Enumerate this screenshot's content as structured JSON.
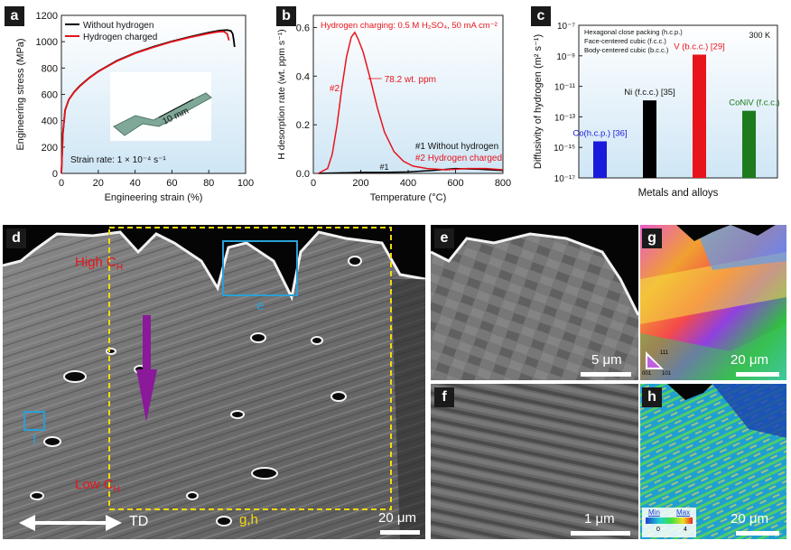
{
  "panels": {
    "a": "a",
    "b": "b",
    "c": "c",
    "d": "d",
    "e": "e",
    "f": "f",
    "g": "g",
    "h": "h"
  },
  "chart_data": [
    {
      "type": "line",
      "panel": "a",
      "xlabel": "Engineering strain (%)",
      "ylabel": "Engineering stress (MPa)",
      "xlim": [
        0,
        100
      ],
      "ylim": [
        0,
        1200
      ],
      "xticks": [
        0,
        20,
        40,
        60,
        80,
        100
      ],
      "yticks": [
        0,
        200,
        400,
        600,
        800,
        1000,
        1200
      ],
      "legend": [
        "Without hydrogen",
        "Hydrogen charged"
      ],
      "annotation": "Strain rate: 1 × 10⁻⁴ s⁻¹",
      "inset_label": "10 mm",
      "series": [
        {
          "name": "Without hydrogen",
          "color": "#000000",
          "x": [
            0,
            0.8,
            2,
            4,
            7,
            10,
            15,
            20,
            30,
            40,
            50,
            60,
            70,
            80,
            86,
            90,
            92,
            93,
            93.5,
            94
          ],
          "y": [
            0,
            300,
            480,
            560,
            620,
            665,
            725,
            775,
            855,
            915,
            962,
            1003,
            1038,
            1070,
            1085,
            1088,
            1082,
            1060,
            1020,
            960
          ]
        },
        {
          "name": "Hydrogen charged",
          "color": "#e8141c",
          "x": [
            0,
            0.8,
            2,
            4,
            7,
            10,
            15,
            20,
            30,
            40,
            50,
            60,
            70,
            80,
            85,
            88,
            90,
            91
          ],
          "y": [
            0,
            300,
            480,
            560,
            618,
            662,
            722,
            772,
            852,
            912,
            958,
            1000,
            1034,
            1063,
            1075,
            1078,
            1060,
            1010
          ]
        }
      ]
    },
    {
      "type": "line",
      "panel": "b",
      "xlabel": "Temperature (°C)",
      "ylabel": "H desorption rate (wt. ppm s⁻¹)",
      "xlim": [
        0,
        800
      ],
      "ylim": [
        0,
        0.65
      ],
      "xticks": [
        0,
        200,
        400,
        600,
        800
      ],
      "yticks": [
        0.0,
        0.2,
        0.4,
        0.6
      ],
      "title": "Hydrogen charging: 0.5 M H₂SO₄, 50 mA cm⁻²",
      "annotations": [
        "#2",
        "78.2 wt. ppm",
        "#1",
        "#1 Without hydrogen",
        "#2 Hydrogen charged"
      ],
      "series": [
        {
          "name": "#1 Without hydrogen",
          "color": "#000000",
          "x": [
            20,
            100,
            200,
            300,
            400,
            500,
            600,
            700,
            800
          ],
          "y": [
            0.0,
            0.002,
            0.004,
            0.004,
            0.006,
            0.012,
            0.02,
            0.017,
            0.012
          ]
        },
        {
          "name": "#2 Hydrogen charged",
          "color": "#e8141c",
          "x": [
            20,
            60,
            80,
            100,
            120,
            140,
            160,
            175,
            190,
            210,
            240,
            270,
            300,
            340,
            380,
            420,
            480,
            560,
            650,
            730,
            800
          ],
          "y": [
            0.0,
            0.02,
            0.08,
            0.2,
            0.35,
            0.48,
            0.56,
            0.58,
            0.55,
            0.5,
            0.39,
            0.27,
            0.17,
            0.09,
            0.05,
            0.03,
            0.02,
            0.015,
            0.02,
            0.02,
            0.015
          ]
        }
      ]
    },
    {
      "type": "bar",
      "panel": "c",
      "xlabel": "Metals and alloys",
      "ylabel": "Diffusivity of hydrogen (m² s⁻¹)",
      "yscale": "log",
      "ylim": [
        1e-17,
        1e-07
      ],
      "yticks": [
        "10⁻¹⁷",
        "10⁻¹⁵",
        "10⁻¹³",
        "10⁻¹¹",
        "10⁻⁹",
        "10⁻⁷"
      ],
      "notes": [
        "Hexagonal close packing (h.c.p.)",
        "Face-centered cubic (f.c.c.)",
        "Body-centered cubic (b.c.c.)"
      ],
      "temperature_label": "300 K",
      "categories": [
        "Co(h.c.p.) [36]",
        "Ni (f.c.c.) [35]",
        "V (b.c.c.) [29]",
        "CoNiV (f.c.c.)"
      ],
      "values": [
        2.5e-15,
        1.2e-12,
        1.2e-09,
        2.5e-13
      ],
      "colors": [
        "#1a1adc",
        "#000000",
        "#e8141c",
        "#1d7a1d"
      ]
    }
  ],
  "micro": {
    "d_labels": {
      "high": "High C",
      "high_sub": "H",
      "low": "Low C",
      "low_sub": "H",
      "e": "e",
      "f": "f",
      "gh": "g,h",
      "td": "TD",
      "scale": "20 μm"
    },
    "e_scale": "5 μm",
    "f_scale": "1 μm",
    "g_scale": "20 μm",
    "g_triangle": [
      "111",
      "001",
      "101"
    ],
    "h_scale": "20 μm",
    "h_legend": {
      "min": "Min",
      "max": "Max",
      "min_val": "0",
      "max_val": "4"
    }
  }
}
